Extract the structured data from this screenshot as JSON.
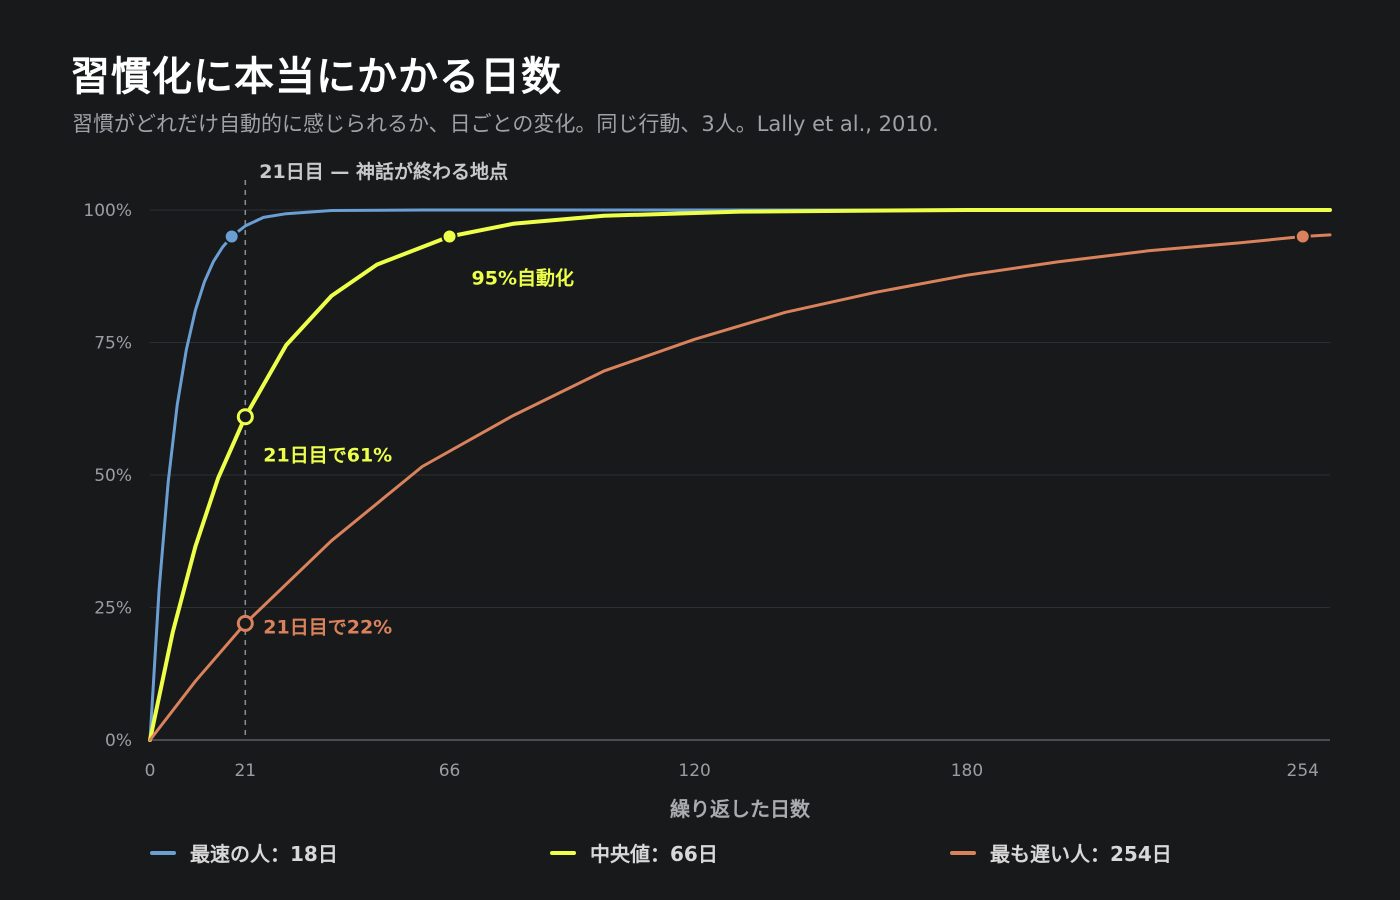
{
  "header": {
    "title": "習慣化に本当にかかる日数",
    "subtitle": "習慣がどれだけ自動的に感じられるか、日ごとの変化。同じ行動、3人。Lally et al., 2010."
  },
  "colors": {
    "background": "#17191b",
    "fastest": "#6b9fd4",
    "median": "#eeff4a",
    "slowest": "#d9825b",
    "grid": "#2c2f33",
    "axis_text": "#9a9ea2"
  },
  "chart_data": {
    "type": "line",
    "title": "習慣化に本当にかかる日数",
    "subtitle": "習慣がどれだけ自動的に感じられるか、日ごとの変化。同じ行動、3人。Lally et al., 2010.",
    "xlabel": "繰り返した日数",
    "ylabel": "",
    "xlim": [
      0,
      260
    ],
    "ylim": [
      0,
      100
    ],
    "x_ticks": [
      0,
      21,
      66,
      120,
      180,
      254
    ],
    "y_ticks": [
      0,
      25,
      50,
      75,
      100
    ],
    "y_tick_labels": [
      "0%",
      "25%",
      "50%",
      "75%",
      "100%"
    ],
    "grid": "horizontal",
    "legend_position": "bottom",
    "series": [
      {
        "name": "最速の人：18日",
        "color": "#6b9fd4",
        "days_to_95": 18,
        "points": [
          [
            0,
            0
          ],
          [
            2,
            28.4
          ],
          [
            4,
            48.7
          ],
          [
            6,
            63.2
          ],
          [
            8,
            73.6
          ],
          [
            10,
            81.1
          ],
          [
            12,
            86.5
          ],
          [
            14,
            90.3
          ],
          [
            16,
            93.0
          ],
          [
            18,
            95.0
          ],
          [
            21,
            97.0
          ],
          [
            25,
            98.6
          ],
          [
            30,
            99.3
          ],
          [
            40,
            99.9
          ],
          [
            60,
            100
          ],
          [
            120,
            100
          ],
          [
            260,
            100
          ]
        ]
      },
      {
        "name": "中央値：66日",
        "color": "#eeff4a",
        "days_to_95": 66,
        "points": [
          [
            0,
            0
          ],
          [
            5,
            20.3
          ],
          [
            10,
            36.5
          ],
          [
            15,
            49.4
          ],
          [
            21,
            61.0
          ],
          [
            30,
            74.5
          ],
          [
            40,
            83.8
          ],
          [
            50,
            89.7
          ],
          [
            66,
            95.0
          ],
          [
            80,
            97.4
          ],
          [
            100,
            98.9
          ],
          [
            130,
            99.7
          ],
          [
            180,
            100
          ],
          [
            260,
            100
          ]
        ]
      },
      {
        "name": "最も遅い人：254日",
        "color": "#d9825b",
        "days_to_95": 254,
        "points": [
          [
            0,
            0
          ],
          [
            10,
            11.1
          ],
          [
            21,
            22.0
          ],
          [
            40,
            37.6
          ],
          [
            60,
            51.6
          ],
          [
            80,
            61.2
          ],
          [
            100,
            69.6
          ],
          [
            120,
            75.6
          ],
          [
            140,
            80.7
          ],
          [
            160,
            84.5
          ],
          [
            180,
            87.7
          ],
          [
            200,
            90.2
          ],
          [
            220,
            92.3
          ],
          [
            240,
            93.8
          ],
          [
            254,
            95.0
          ],
          [
            260,
            95.3
          ]
        ]
      }
    ],
    "markers": [
      {
        "series": 0,
        "x": 18,
        "y": 95,
        "style": "filled"
      },
      {
        "series": 1,
        "x": 66,
        "y": 95,
        "style": "filled"
      },
      {
        "series": 2,
        "x": 254,
        "y": 95,
        "style": "filled"
      },
      {
        "series": 1,
        "x": 21,
        "y": 61,
        "style": "hollow"
      },
      {
        "series": 2,
        "x": 21,
        "y": 22,
        "style": "hollow"
      }
    ],
    "annotations": [
      {
        "text": "21日目 — 神話が終わる地点",
        "x": 21,
        "y": 100,
        "color": "#c9c9c9",
        "kind": "reference-line"
      },
      {
        "text": "95%自動化",
        "x": 66,
        "y": 95,
        "color": "#eeff4a"
      },
      {
        "text": "21日目で61%",
        "x": 21,
        "y": 61,
        "color": "#eeff4a"
      },
      {
        "text": "21日目で22%",
        "x": 21,
        "y": 22,
        "color": "#d9825b"
      }
    ]
  }
}
